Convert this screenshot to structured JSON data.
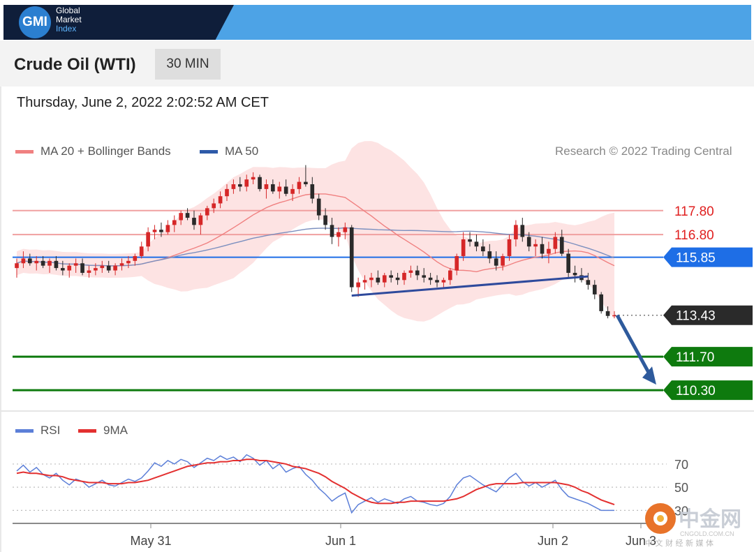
{
  "header": {
    "logo_initials": "GMI",
    "logo_line1": "Global",
    "logo_line2": "Market",
    "logo_line3": "Index"
  },
  "title": "Crude Oil (WTI)",
  "timeframe": "30 MIN",
  "datetime": "Thursday, June 2, 2022 2:02:52 AM CET",
  "legend": {
    "ma20": "MA 20 + Bollinger Bands",
    "ma50": "MA 50",
    "rsi": "RSI",
    "ma9": "9MA"
  },
  "credit": "Research © 2022 Trading Central",
  "colors": {
    "bollinger": "#f08080",
    "ma50": "#2e5aa8",
    "up_candle": "#d62728",
    "down_candle": "#2a2a2a",
    "support": "#0e7a0e",
    "resistance": "#f0a0a0",
    "pivot": "#1e6ee6",
    "arrow": "#2e5a9c",
    "rsi": "#5c7fd8",
    "ma9": "#e33030"
  },
  "watermark": {
    "brand": "中金网",
    "domain": "CNGOLD.COM.CN",
    "tagline": "中 文 财 经 新 媒 体"
  },
  "chart_data": {
    "type": "candlestick",
    "title": "Crude Oil (WTI)",
    "interval": "30 MIN",
    "x_ticks": [
      "May 31",
      "Jun 1",
      "Jun 2",
      "Jun 3"
    ],
    "ylim": [
      109.4,
      119.6
    ],
    "candles": [
      [
        115.4,
        115.8,
        115.0,
        115.6
      ],
      [
        115.6,
        116.1,
        115.4,
        115.8
      ],
      [
        115.8,
        116.0,
        115.5,
        115.6
      ],
      [
        115.6,
        115.9,
        115.3,
        115.7
      ],
      [
        115.7,
        115.9,
        115.4,
        115.5
      ],
      [
        115.5,
        115.8,
        115.2,
        115.7
      ],
      [
        115.7,
        115.9,
        115.3,
        115.4
      ],
      [
        115.4,
        115.7,
        115.1,
        115.3
      ],
      [
        115.3,
        115.6,
        115.0,
        115.5
      ],
      [
        115.5,
        115.8,
        115.2,
        115.6
      ],
      [
        115.6,
        115.8,
        115.1,
        115.2
      ],
      [
        115.2,
        115.5,
        115.0,
        115.3
      ],
      [
        115.3,
        115.6,
        115.1,
        115.4
      ],
      [
        115.4,
        115.7,
        115.2,
        115.5
      ],
      [
        115.5,
        115.7,
        115.2,
        115.3
      ],
      [
        115.3,
        115.6,
        115.1,
        115.5
      ],
      [
        115.5,
        115.8,
        115.3,
        115.6
      ],
      [
        115.6,
        115.9,
        115.4,
        115.7
      ],
      [
        115.7,
        116.0,
        115.5,
        115.9
      ],
      [
        115.9,
        116.5,
        115.8,
        116.3
      ],
      [
        116.3,
        117.1,
        116.1,
        116.9
      ],
      [
        116.9,
        117.2,
        116.6,
        117.0
      ],
      [
        117.0,
        117.3,
        116.7,
        116.9
      ],
      [
        116.9,
        117.4,
        116.8,
        117.2
      ],
      [
        117.2,
        117.6,
        116.9,
        117.4
      ],
      [
        117.4,
        117.8,
        117.2,
        117.7
      ],
      [
        117.7,
        117.9,
        117.4,
        117.5
      ],
      [
        117.5,
        117.8,
        117.0,
        117.2
      ],
      [
        117.2,
        117.7,
        116.8,
        117.6
      ],
      [
        117.6,
        118.0,
        117.4,
        117.9
      ],
      [
        117.9,
        118.3,
        117.7,
        118.1
      ],
      [
        118.1,
        118.6,
        117.9,
        118.4
      ],
      [
        118.4,
        118.9,
        118.2,
        118.7
      ],
      [
        118.7,
        119.1,
        118.5,
        118.9
      ],
      [
        118.9,
        119.2,
        118.6,
        118.8
      ],
      [
        118.8,
        119.3,
        118.6,
        119.1
      ],
      [
        119.1,
        119.4,
        118.9,
        119.2
      ],
      [
        119.2,
        119.3,
        118.6,
        118.7
      ],
      [
        118.7,
        119.1,
        118.3,
        118.9
      ],
      [
        118.9,
        119.1,
        118.5,
        118.6
      ],
      [
        118.6,
        119.0,
        118.3,
        118.8
      ],
      [
        118.8,
        119.1,
        118.4,
        118.5
      ],
      [
        118.5,
        118.9,
        118.2,
        118.7
      ],
      [
        118.7,
        119.2,
        118.5,
        119.0
      ],
      [
        119.0,
        119.7,
        118.8,
        118.9
      ],
      [
        118.9,
        119.2,
        118.1,
        118.3
      ],
      [
        118.3,
        118.5,
        117.4,
        117.6
      ],
      [
        117.6,
        117.9,
        117.0,
        117.2
      ],
      [
        117.2,
        117.5,
        116.4,
        116.7
      ],
      [
        116.7,
        117.1,
        116.3,
        116.9
      ],
      [
        116.9,
        117.3,
        116.6,
        117.1
      ],
      [
        117.1,
        117.2,
        114.4,
        114.6
      ],
      [
        114.6,
        115.0,
        114.2,
        114.8
      ],
      [
        114.8,
        115.1,
        114.5,
        114.9
      ],
      [
        114.9,
        115.2,
        114.6,
        115.0
      ],
      [
        115.0,
        115.3,
        114.7,
        114.8
      ],
      [
        114.8,
        115.2,
        114.6,
        115.1
      ],
      [
        115.1,
        115.3,
        114.8,
        115.0
      ],
      [
        115.0,
        115.2,
        114.7,
        114.9
      ],
      [
        114.9,
        115.3,
        114.7,
        115.2
      ],
      [
        115.2,
        115.5,
        115.0,
        115.3
      ],
      [
        115.3,
        115.5,
        114.9,
        115.1
      ],
      [
        115.1,
        115.4,
        114.8,
        115.0
      ],
      [
        115.0,
        115.2,
        114.7,
        114.9
      ],
      [
        114.9,
        115.1,
        114.6,
        114.8
      ],
      [
        114.8,
        115.0,
        114.6,
        114.9
      ],
      [
        114.9,
        115.4,
        114.7,
        115.3
      ],
      [
        115.3,
        116.0,
        115.1,
        115.9
      ],
      [
        115.9,
        116.9,
        115.7,
        116.6
      ],
      [
        116.6,
        116.9,
        116.3,
        116.5
      ],
      [
        116.5,
        116.8,
        116.1,
        116.3
      ],
      [
        116.3,
        116.6,
        115.9,
        116.1
      ],
      [
        116.1,
        116.4,
        115.6,
        115.8
      ],
      [
        115.8,
        116.1,
        115.3,
        115.5
      ],
      [
        115.5,
        116.0,
        115.3,
        115.9
      ],
      [
        115.9,
        116.8,
        115.7,
        116.6
      ],
      [
        116.6,
        117.4,
        116.3,
        117.2
      ],
      [
        117.2,
        117.5,
        116.5,
        116.7
      ],
      [
        116.7,
        116.9,
        116.1,
        116.3
      ],
      [
        116.3,
        116.6,
        115.9,
        116.4
      ],
      [
        116.4,
        116.7,
        115.8,
        116.0
      ],
      [
        116.0,
        116.5,
        115.6,
        116.2
      ],
      [
        116.2,
        116.9,
        116.0,
        116.7
      ],
      [
        116.7,
        117.0,
        115.9,
        116.0
      ],
      [
        116.0,
        116.2,
        115.0,
        115.2
      ],
      [
        115.2,
        115.5,
        114.8,
        115.1
      ],
      [
        115.1,
        115.4,
        114.8,
        114.9
      ],
      [
        114.9,
        115.2,
        114.5,
        114.7
      ],
      [
        114.7,
        114.9,
        114.1,
        114.3
      ],
      [
        114.3,
        114.4,
        113.5,
        113.6
      ],
      [
        113.6,
        113.8,
        113.3,
        113.4
      ],
      [
        113.4,
        113.6,
        113.3,
        113.43
      ]
    ],
    "levels": {
      "resistance": [
        117.8,
        116.8
      ],
      "pivot": 115.85,
      "current": 113.43,
      "support": [
        111.7,
        110.3
      ]
    },
    "level_labels": [
      "117.80",
      "116.80",
      "115.85",
      "113.43",
      "111.70",
      "110.30"
    ],
    "target_arrow": {
      "from": 113.43,
      "to": 110.3
    },
    "rsi": {
      "ylim": [
        20,
        85
      ],
      "levels": [
        70,
        50,
        30
      ],
      "level_labels": [
        "70",
        "50",
        "30"
      ],
      "values": [
        64,
        69,
        63,
        67,
        61,
        58,
        62,
        56,
        52,
        57,
        55,
        50,
        53,
        56,
        52,
        51,
        54,
        57,
        55,
        58,
        64,
        71,
        68,
        73,
        70,
        74,
        72,
        67,
        71,
        75,
        73,
        77,
        74,
        76,
        72,
        78,
        75,
        69,
        73,
        66,
        70,
        63,
        66,
        68,
        61,
        56,
        49,
        44,
        38,
        42,
        45,
        28,
        35,
        38,
        41,
        37,
        40,
        38,
        36,
        40,
        42,
        38,
        37,
        35,
        34,
        36,
        42,
        52,
        58,
        60,
        56,
        52,
        49,
        46,
        52,
        58,
        62,
        55,
        51,
        54,
        50,
        53,
        56,
        48,
        42,
        40,
        38,
        36,
        33,
        30,
        30,
        30
      ],
      "ma9": [
        62,
        63,
        62,
        62,
        61,
        60,
        60,
        59,
        57,
        56,
        55,
        54,
        54,
        54,
        53,
        53,
        53,
        54,
        54,
        55,
        56,
        58,
        60,
        62,
        64,
        66,
        68,
        69,
        70,
        71,
        71,
        72,
        72,
        73,
        73,
        74,
        74,
        73,
        73,
        72,
        71,
        70,
        68,
        67,
        66,
        64,
        62,
        59,
        55,
        52,
        49,
        45,
        42,
        39,
        37,
        36,
        36,
        36,
        37,
        37,
        38,
        38,
        38,
        38,
        38,
        38,
        39,
        40,
        42,
        45,
        48,
        50,
        52,
        53,
        53,
        53,
        53,
        54,
        54,
        54,
        54,
        54,
        54,
        53,
        52,
        50,
        47,
        45,
        42,
        39,
        37,
        35
      ]
    }
  }
}
